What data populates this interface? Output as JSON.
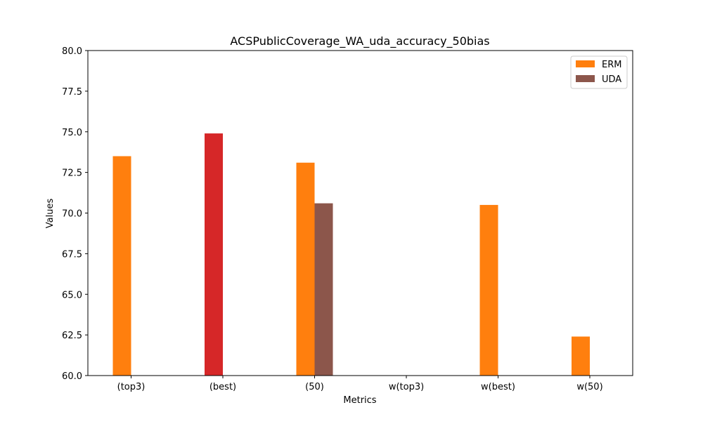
{
  "chart_data": {
    "type": "bar",
    "title": "ACSPublicCoverage_WA_uda_accuracy_50bias",
    "xlabel": "Metrics",
    "ylabel": "Values",
    "categories": [
      "(top3)",
      "(best)",
      "(50)",
      "w(top3)",
      "w(best)",
      "w(50)"
    ],
    "ylim": [
      60.0,
      80.0
    ],
    "yticks": [
      "60.0",
      "62.5",
      "65.0",
      "67.5",
      "70.0",
      "72.5",
      "75.0",
      "77.5",
      "80.0"
    ],
    "legend_position": "top-right",
    "grid": false,
    "series": [
      {
        "name": "ERM",
        "color": "#ff7f0e",
        "values": [
          73.5,
          null,
          73.1,
          null,
          70.5,
          62.4
        ]
      },
      {
        "name": "UDA",
        "color": "#8c564b",
        "values": [
          null,
          null,
          70.6,
          null,
          null,
          null
        ]
      },
      {
        "color": "#d62728",
        "values": [
          null,
          74.9,
          null,
          null,
          null,
          null
        ]
      }
    ],
    "legend_entries": [
      "ERM",
      "UDA"
    ]
  }
}
